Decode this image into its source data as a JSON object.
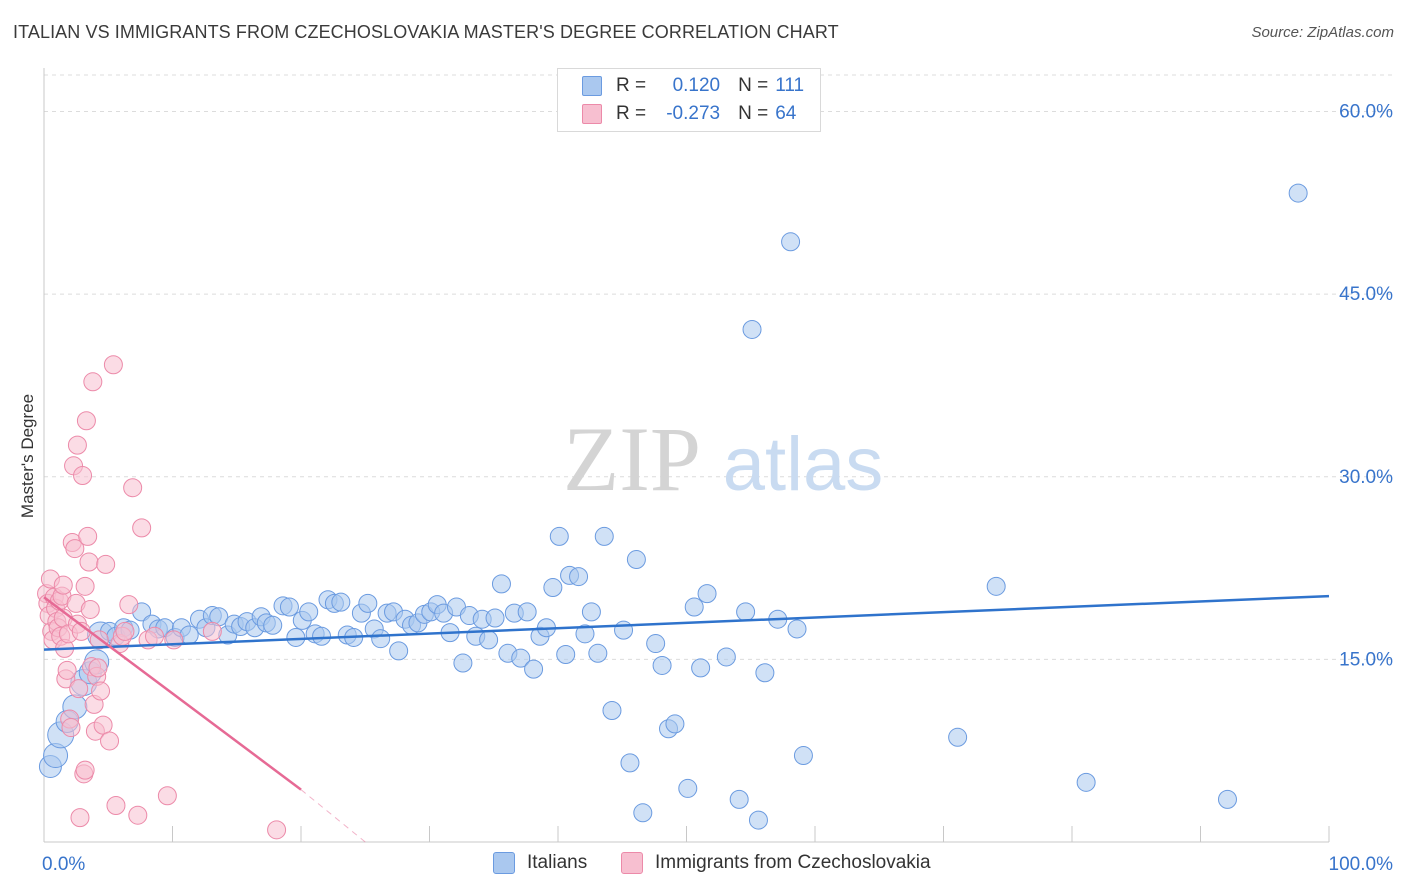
{
  "title": "ITALIAN VS IMMIGRANTS FROM CZECHOSLOVAKIA MASTER'S DEGREE CORRELATION CHART",
  "source": "Source: ZipAtlas.com",
  "watermark": {
    "zip": "ZIP",
    "atlas": "atlas"
  },
  "legend": {
    "r_label": "R =",
    "n_label": "N =",
    "series1": {
      "r": "0.120",
      "n": "111"
    },
    "series2": {
      "r": "-0.273",
      "n": "64"
    }
  },
  "colors": {
    "blue_fill": "#aac8ef",
    "blue_stroke": "#6b9be0",
    "blue_line": "#2f73cc",
    "pink_fill": "#f7bfd0",
    "pink_stroke": "#ec8aa9",
    "pink_line": "#e66a95",
    "axis_text": "#3874cb",
    "grid": "#dcdcdc"
  },
  "chart_data": {
    "type": "scatter",
    "title": "ITALIAN VS IMMIGRANTS FROM CZECHOSLOVAKIA MASTER'S DEGREE CORRELATION CHART",
    "xlabel": "",
    "ylabel": "Master's Degree",
    "xlim": [
      0,
      100
    ],
    "ylim": [
      0,
      63
    ],
    "x_tick_labels": [
      "0.0%",
      "100.0%"
    ],
    "y_ticks": [
      15,
      30,
      45,
      60
    ],
    "y_tick_labels": [
      "15.0%",
      "30.0%",
      "45.0%",
      "60.0%"
    ],
    "series": [
      {
        "name": "Italians",
        "trend": {
          "x": [
            0,
            100
          ],
          "y": [
            15.8,
            20.2
          ]
        },
        "points": [
          [
            0.5,
            6.2
          ],
          [
            0.9,
            7.1
          ],
          [
            1.3,
            8.8
          ],
          [
            1.8,
            9.9
          ],
          [
            2.4,
            11.1
          ],
          [
            3.1,
            13.1
          ],
          [
            3.6,
            13.9
          ],
          [
            4.1,
            14.8
          ],
          [
            4.4,
            17.0
          ],
          [
            5.1,
            17.3
          ],
          [
            5.6,
            16.9
          ],
          [
            6.2,
            17.6
          ],
          [
            6.7,
            17.4
          ],
          [
            7.6,
            18.9
          ],
          [
            8.4,
            17.9
          ],
          [
            8.9,
            17.5
          ],
          [
            9.4,
            17.6
          ],
          [
            10.2,
            16.8
          ],
          [
            10.7,
            17.6
          ],
          [
            11.3,
            17.0
          ],
          [
            12.1,
            18.3
          ],
          [
            12.6,
            17.6
          ],
          [
            13.1,
            18.6
          ],
          [
            13.6,
            18.5
          ],
          [
            14.3,
            17.0
          ],
          [
            14.8,
            17.9
          ],
          [
            15.3,
            17.7
          ],
          [
            15.8,
            18.1
          ],
          [
            16.4,
            17.6
          ],
          [
            16.9,
            18.5
          ],
          [
            17.3,
            18.0
          ],
          [
            17.8,
            17.8
          ],
          [
            18.6,
            19.4
          ],
          [
            19.1,
            19.3
          ],
          [
            19.6,
            16.8
          ],
          [
            20.1,
            18.2
          ],
          [
            20.6,
            18.9
          ],
          [
            21.1,
            17.1
          ],
          [
            21.6,
            16.9
          ],
          [
            22.1,
            19.9
          ],
          [
            22.6,
            19.6
          ],
          [
            23.1,
            19.7
          ],
          [
            23.6,
            17.0
          ],
          [
            24.1,
            16.8
          ],
          [
            24.7,
            18.8
          ],
          [
            25.2,
            19.6
          ],
          [
            25.7,
            17.5
          ],
          [
            26.2,
            16.7
          ],
          [
            26.7,
            18.8
          ],
          [
            27.2,
            18.9
          ],
          [
            27.6,
            15.7
          ],
          [
            28.1,
            18.3
          ],
          [
            28.6,
            17.8
          ],
          [
            29.1,
            18.0
          ],
          [
            29.6,
            18.7
          ],
          [
            30.1,
            18.9
          ],
          [
            30.6,
            19.5
          ],
          [
            31.1,
            18.8
          ],
          [
            31.6,
            17.2
          ],
          [
            32.1,
            19.3
          ],
          [
            32.6,
            14.7
          ],
          [
            33.1,
            18.6
          ],
          [
            33.6,
            16.9
          ],
          [
            34.1,
            18.3
          ],
          [
            34.6,
            16.6
          ],
          [
            35.1,
            18.4
          ],
          [
            35.6,
            21.2
          ],
          [
            36.1,
            15.5
          ],
          [
            36.6,
            18.8
          ],
          [
            37.1,
            15.1
          ],
          [
            37.6,
            18.9
          ],
          [
            38.1,
            14.2
          ],
          [
            38.6,
            16.9
          ],
          [
            39.1,
            17.6
          ],
          [
            39.6,
            20.9
          ],
          [
            40.1,
            25.1
          ],
          [
            40.6,
            15.4
          ],
          [
            40.9,
            21.9
          ],
          [
            41.6,
            21.8
          ],
          [
            42.1,
            17.1
          ],
          [
            42.6,
            18.9
          ],
          [
            43.1,
            15.5
          ],
          [
            43.6,
            25.1
          ],
          [
            44.2,
            10.8
          ],
          [
            45.1,
            17.4
          ],
          [
            45.6,
            6.5
          ],
          [
            46.1,
            23.2
          ],
          [
            46.6,
            2.4
          ],
          [
            47.6,
            16.3
          ],
          [
            48.1,
            14.5
          ],
          [
            48.6,
            9.3
          ],
          [
            49.1,
            9.7
          ],
          [
            50.1,
            4.4
          ],
          [
            50.6,
            19.3
          ],
          [
            51.1,
            14.3
          ],
          [
            51.6,
            20.4
          ],
          [
            53.1,
            15.2
          ],
          [
            54.1,
            3.5
          ],
          [
            54.6,
            18.9
          ],
          [
            55.1,
            42.1
          ],
          [
            55.6,
            1.8
          ],
          [
            56.1,
            13.9
          ],
          [
            57.1,
            18.3
          ],
          [
            58.1,
            49.3
          ],
          [
            58.6,
            17.5
          ],
          [
            59.1,
            7.1
          ],
          [
            71.1,
            8.6
          ],
          [
            74.1,
            21.0
          ],
          [
            81.1,
            4.9
          ],
          [
            92.1,
            3.5
          ],
          [
            97.6,
            53.3
          ]
        ]
      },
      {
        "name": "Immigrants from Czechoslovakia",
        "trend": {
          "x": [
            0,
            20
          ],
          "y": [
            20.1,
            4.3
          ],
          "dash_to": [
            25,
            0
          ]
        },
        "points": [
          [
            0.2,
            20.4
          ],
          [
            0.3,
            19.6
          ],
          [
            0.4,
            18.6
          ],
          [
            0.5,
            21.6
          ],
          [
            0.6,
            17.3
          ],
          [
            0.7,
            16.6
          ],
          [
            0.8,
            20.1
          ],
          [
            0.9,
            19.2
          ],
          [
            1.0,
            18.1
          ],
          [
            1.1,
            17.6
          ],
          [
            1.2,
            19.8
          ],
          [
            1.3,
            16.9
          ],
          [
            1.4,
            20.2
          ],
          [
            1.5,
            18.4
          ],
          [
            1.6,
            15.9
          ],
          [
            1.7,
            13.4
          ],
          [
            1.8,
            14.1
          ],
          [
            1.9,
            17.1
          ],
          [
            2.0,
            10.1
          ],
          [
            2.1,
            9.4
          ],
          [
            2.2,
            24.6
          ],
          [
            2.3,
            30.9
          ],
          [
            2.4,
            24.1
          ],
          [
            2.5,
            19.6
          ],
          [
            2.6,
            17.9
          ],
          [
            2.7,
            12.6
          ],
          [
            2.8,
            2.0
          ],
          [
            2.9,
            17.3
          ],
          [
            3.0,
            30.1
          ],
          [
            3.1,
            5.6
          ],
          [
            3.2,
            5.9
          ],
          [
            3.3,
            34.6
          ],
          [
            3.4,
            25.1
          ],
          [
            3.5,
            23.0
          ],
          [
            3.6,
            19.1
          ],
          [
            3.7,
            14.4
          ],
          [
            3.8,
            37.8
          ],
          [
            3.9,
            11.3
          ],
          [
            4.0,
            9.1
          ],
          [
            4.1,
            13.6
          ],
          [
            4.2,
            14.3
          ],
          [
            4.3,
            16.6
          ],
          [
            4.4,
            12.4
          ],
          [
            4.6,
            9.6
          ],
          [
            4.8,
            22.8
          ],
          [
            5.1,
            8.3
          ],
          [
            5.4,
            39.2
          ],
          [
            5.6,
            3.0
          ],
          [
            5.9,
            16.3
          ],
          [
            6.1,
            16.9
          ],
          [
            6.3,
            17.3
          ],
          [
            6.6,
            19.5
          ],
          [
            6.9,
            29.1
          ],
          [
            7.3,
            2.2
          ],
          [
            7.6,
            25.8
          ],
          [
            8.1,
            16.6
          ],
          [
            8.6,
            16.9
          ],
          [
            9.6,
            3.8
          ],
          [
            10.1,
            16.6
          ],
          [
            13.1,
            17.3
          ],
          [
            18.1,
            1.0
          ],
          [
            2.6,
            32.6
          ],
          [
            1.5,
            21.1
          ],
          [
            3.2,
            21.0
          ]
        ]
      }
    ]
  },
  "bottom_legend": {
    "series1": "Italians",
    "series2": "Immigrants from Czechoslovakia"
  }
}
